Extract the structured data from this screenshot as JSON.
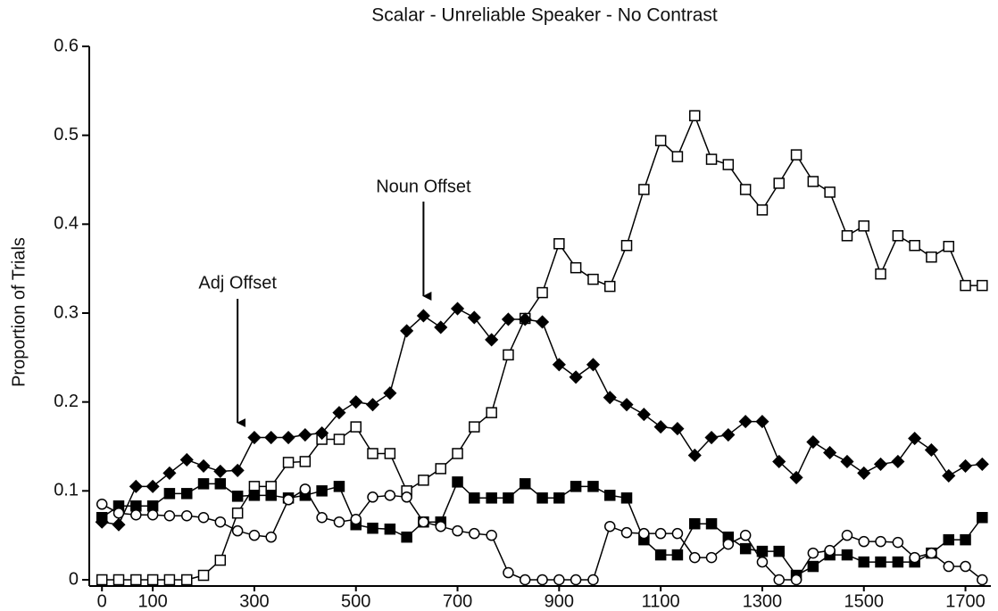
{
  "chart_data": {
    "type": "line",
    "title": "Scalar - Unreliable Speaker - No Contrast",
    "y_label": "Proportion of Trials",
    "x": [
      0,
      33,
      67,
      100,
      133,
      167,
      200,
      233,
      267,
      300,
      333,
      367,
      400,
      433,
      467,
      500,
      533,
      567,
      600,
      633,
      667,
      700,
      733,
      767,
      800,
      833,
      867,
      900,
      933,
      967,
      1000,
      1033,
      1067,
      1100,
      1133,
      1167,
      1200,
      1233,
      1267,
      1300,
      1333,
      1367,
      1400,
      1433,
      1467,
      1500,
      1533,
      1567,
      1600,
      1633,
      1667,
      1700,
      1733
    ],
    "xlim": [
      -25,
      1750
    ],
    "xticks": [
      0,
      100,
      300,
      500,
      700,
      900,
      1100,
      1300,
      1500,
      1700
    ],
    "ylim": [
      0,
      0.6
    ],
    "yticks": [
      0,
      0.1,
      0.2,
      0.3,
      0.4,
      0.5,
      0.6
    ],
    "grid": false,
    "series": [
      {
        "marker": "square-open",
        "color": "#000000",
        "values": [
          0,
          0,
          0,
          0,
          0,
          0,
          0.005,
          0.022,
          0.075,
          0.105,
          0.105,
          0.132,
          0.133,
          0.158,
          0.158,
          0.172,
          0.142,
          0.142,
          0.1,
          0.112,
          0.125,
          0.142,
          0.172,
          0.188,
          0.253,
          0.294,
          0.323,
          0.378,
          0.351,
          0.338,
          0.33,
          0.376,
          0.439,
          0.494,
          0.476,
          0.522,
          0.473,
          0.467,
          0.439,
          0.416,
          0.446,
          0.478,
          0.448,
          0.436,
          0.387,
          0.398,
          0.344,
          0.387,
          0.376,
          0.363,
          0.375,
          0.331,
          0.331
        ]
      },
      {
        "marker": "diamond-filled",
        "color": "#000000",
        "values": [
          0.065,
          0.062,
          0.105,
          0.105,
          0.12,
          0.135,
          0.128,
          0.122,
          0.123,
          0.16,
          0.16,
          0.16,
          0.163,
          0.165,
          0.188,
          0.2,
          0.197,
          0.21,
          0.28,
          0.297,
          0.284,
          0.305,
          0.295,
          0.27,
          0.293,
          0.293,
          0.29,
          0.242,
          0.228,
          0.242,
          0.205,
          0.197,
          0.186,
          0.172,
          0.17,
          0.14,
          0.16,
          0.163,
          0.178,
          0.178,
          0.133,
          0.115,
          0.155,
          0.143,
          0.133,
          0.12,
          0.13,
          0.133,
          0.159,
          0.146,
          0.117,
          0.128,
          0.13
        ]
      },
      {
        "marker": "square-filled",
        "color": "#000000",
        "values": [
          0.07,
          0.083,
          0.083,
          0.083,
          0.097,
          0.097,
          0.108,
          0.108,
          0.094,
          0.095,
          0.095,
          0.092,
          0.095,
          0.1,
          0.105,
          0.062,
          0.058,
          0.057,
          0.048,
          0.065,
          0.065,
          0.11,
          0.092,
          0.092,
          0.092,
          0.108,
          0.092,
          0.092,
          0.105,
          0.105,
          0.095,
          0.092,
          0.045,
          0.028,
          0.028,
          0.063,
          0.063,
          0.048,
          0.035,
          0.032,
          0.032,
          0.005,
          0.015,
          0.028,
          0.028,
          0.02,
          0.02,
          0.02,
          0.02,
          0.03,
          0.045,
          0.045,
          0.07
        ]
      },
      {
        "marker": "circle-open",
        "color": "#000000",
        "values": [
          0.085,
          0.075,
          0.073,
          0.073,
          0.072,
          0.072,
          0.07,
          0.065,
          0.055,
          0.05,
          0.048,
          0.09,
          0.102,
          0.07,
          0.065,
          0.068,
          0.093,
          0.095,
          0.093,
          0.065,
          0.06,
          0.055,
          0.052,
          0.05,
          0.008,
          0,
          0,
          0,
          0,
          0,
          0.06,
          0.053,
          0.052,
          0.052,
          0.052,
          0.025,
          0.025,
          0.04,
          0.05,
          0.02,
          0,
          0,
          0.03,
          0.033,
          0.05,
          0.043,
          0.043,
          0.042,
          0.025,
          0.03,
          0.015,
          0.015,
          0
        ]
      }
    ],
    "annotations": [
      {
        "text": "Adj Offset",
        "x": 267
      },
      {
        "text": "Noun Offset",
        "x": 633
      }
    ]
  }
}
